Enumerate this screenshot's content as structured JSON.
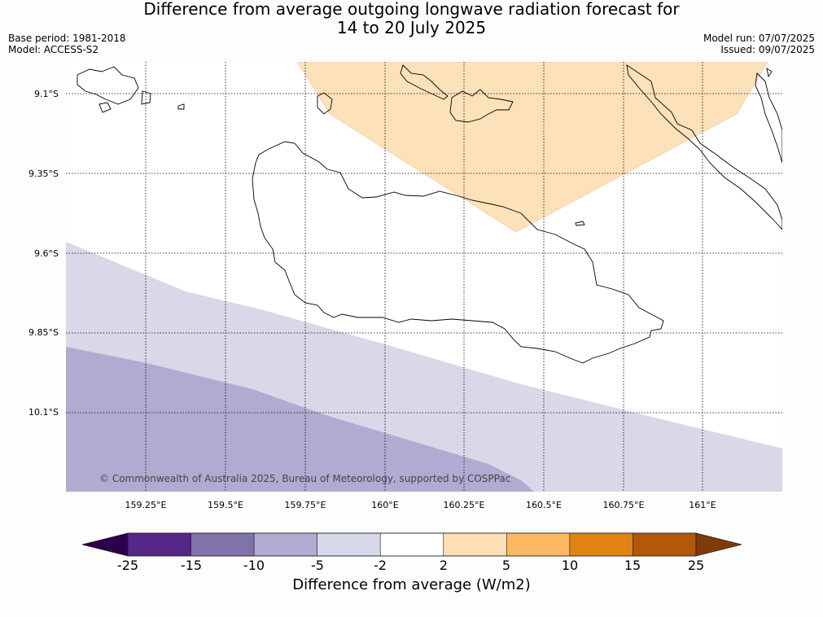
{
  "header": {
    "title_line1": "Difference from average outgoing longwave radiation forecast for",
    "title_line2": "14 to 20 July 2025",
    "base_period": "Base period: 1981-2018",
    "model": "Model: ACCESS-S2",
    "model_run": "Model run: 07/07/2025",
    "issued": "Issued: 09/07/2025"
  },
  "map": {
    "lat_labels": [
      "9.1°S",
      "9.35°S",
      "9.6°S",
      "9.85°S",
      "10.1°S"
    ],
    "lon_labels": [
      "159.25°E",
      "159.5°E",
      "159.75°E",
      "160°E",
      "160.25°E",
      "160.5°E",
      "160.75°E",
      "161°E"
    ],
    "copyright": "© Commonwealth of Australia 2025, Bureau of Meteorology, supported by COSPPac",
    "ocean_color": "#ffffff",
    "coastline_color": "#000000",
    "fill_regions": [
      {
        "category": "2 to 5",
        "color": "#fde1b9"
      },
      {
        "category": "-5 to -2",
        "color": "#d8d8e9"
      },
      {
        "category": "-10 to -5",
        "color": "#b1abd2"
      }
    ]
  },
  "colorbar": {
    "title": "Difference from average (W/m2)",
    "ticks": [
      "-25",
      "-15",
      "-10",
      "-5",
      "-2",
      "2",
      "5",
      "10",
      "15",
      "25"
    ],
    "colors": [
      "#2d004b",
      "#542788",
      "#8073ac",
      "#b2abd2",
      "#d8daeb",
      "#ffffff",
      "#fee0b6",
      "#fdb863",
      "#e08214",
      "#b35806",
      "#7f3b08"
    ]
  }
}
